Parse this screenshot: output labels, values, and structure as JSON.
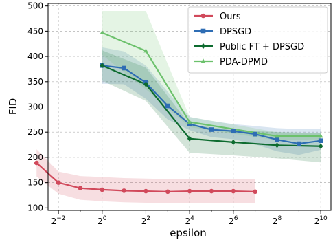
{
  "chart_data": {
    "type": "line",
    "title": "",
    "xlabel": "epsilon",
    "ylabel": "FID",
    "x_scale": "log2",
    "xlim": [
      0.18,
      1414
    ],
    "ylim": [
      95,
      505
    ],
    "grid": true,
    "legend_position": "top-right",
    "x_ticks": [
      {
        "base": "2",
        "exp": "−2",
        "value": 0.25
      },
      {
        "base": "2",
        "exp": "0",
        "value": 1
      },
      {
        "base": "2",
        "exp": "2",
        "value": 4
      },
      {
        "base": "2",
        "exp": "4",
        "value": 16
      },
      {
        "base": "2",
        "exp": "6",
        "value": 64
      },
      {
        "base": "2",
        "exp": "8",
        "value": 256
      },
      {
        "base": "2",
        "exp": "10",
        "value": 1024
      }
    ],
    "y_ticks": [
      100,
      150,
      200,
      250,
      300,
      350,
      400,
      450,
      500
    ],
    "series": [
      {
        "name": "Ours",
        "color": "#d1495b",
        "marker": "circle",
        "x": [
          0.125,
          0.25,
          0.5,
          1,
          2,
          4,
          8,
          16,
          32,
          64,
          128
        ],
        "y": [
          189,
          150,
          139,
          136,
          134,
          133,
          132,
          133,
          133,
          133,
          132
        ],
        "upper": [
          216,
          172,
          163,
          161,
          159,
          158,
          157,
          157,
          157,
          157,
          157
        ],
        "lower": [
          162,
          128,
          116,
          113,
          111,
          110,
          109,
          110,
          110,
          110,
          109
        ]
      },
      {
        "name": "DPSGD",
        "color": "#2e6db4",
        "marker": "square",
        "x": [
          1,
          2,
          4,
          8,
          16,
          32,
          64,
          128,
          256,
          512,
          1024
        ],
        "y": [
          382,
          377,
          348,
          302,
          266,
          255,
          252,
          246,
          235,
          227,
          233
        ],
        "upper": [
          418,
          410,
          382,
          330,
          280,
          272,
          266,
          262,
          258,
          256,
          256
        ],
        "lower": [
          346,
          345,
          316,
          275,
          254,
          240,
          236,
          226,
          212,
          205,
          215
        ]
      },
      {
        "name": "Public FT + DPSGD",
        "color": "#0d6b2f",
        "marker": "diamond",
        "x": [
          1,
          4,
          16,
          64,
          256,
          1024
        ],
        "y": [
          382,
          345,
          237,
          230,
          224,
          222
        ],
        "upper": [
          412,
          378,
          265,
          254,
          250,
          248
        ],
        "lower": [
          352,
          312,
          209,
          204,
          198,
          190
        ]
      },
      {
        "name": "PDA-DPMD",
        "color": "#6cc16c",
        "marker": "triangle",
        "x": [
          1,
          4,
          16,
          256,
          1024
        ],
        "y": [
          447,
          411,
          270,
          242,
          242
        ],
        "upper": [
          490,
          490,
          280,
          250,
          248
        ],
        "lower": [
          403,
          335,
          260,
          234,
          236
        ]
      }
    ]
  }
}
